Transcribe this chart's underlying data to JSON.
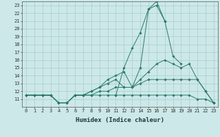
{
  "x": [
    0,
    1,
    2,
    3,
    4,
    5,
    6,
    7,
    8,
    9,
    10,
    11,
    12,
    13,
    14,
    15,
    16,
    17,
    18,
    19,
    20,
    21,
    22,
    23
  ],
  "line_peak": [
    null,
    null,
    null,
    null,
    null,
    null,
    null,
    null,
    null,
    null,
    null,
    11.5,
    15.0,
    17.5,
    19.5,
    22.5,
    23.5,
    21.0,
    null,
    null,
    null,
    null,
    null,
    null
  ],
  "line_main": [
    11.5,
    11.5,
    11.5,
    11.5,
    10.5,
    10.5,
    11.5,
    11.5,
    12.0,
    12.5,
    13.5,
    14.0,
    14.5,
    12.5,
    15.0,
    22.5,
    23.0,
    21.0,
    16.5,
    15.5,
    null,
    null,
    null,
    null
  ],
  "line_mid": [
    11.5,
    11.5,
    11.5,
    11.5,
    10.5,
    10.5,
    11.5,
    11.5,
    12.0,
    12.5,
    13.0,
    13.5,
    12.5,
    12.5,
    13.5,
    14.5,
    15.5,
    16.0,
    15.5,
    15.0,
    15.5,
    13.5,
    12.0,
    10.5
  ],
  "line_low": [
    11.5,
    11.5,
    11.5,
    11.5,
    10.5,
    10.5,
    11.5,
    11.5,
    11.5,
    12.0,
    12.0,
    12.5,
    12.5,
    12.5,
    13.0,
    13.5,
    13.5,
    13.5,
    13.5,
    13.5,
    13.5,
    13.5,
    12.0,
    10.5
  ],
  "line_flat": [
    11.5,
    11.5,
    11.5,
    11.5,
    10.5,
    10.5,
    11.5,
    11.5,
    11.5,
    11.5,
    11.5,
    11.5,
    11.5,
    11.5,
    11.5,
    11.5,
    11.5,
    11.5,
    11.5,
    11.5,
    11.5,
    11.0,
    11.0,
    10.5
  ],
  "line_color": "#2a7a6a",
  "bg_color": "#cce8e8",
  "grid_color": "#aacccc",
  "xlabel": "Humidex (Indice chaleur)",
  "ylim": [
    10,
    23.5
  ],
  "xlim": [
    -0.5,
    23.5
  ],
  "yticks": [
    11,
    12,
    13,
    14,
    15,
    16,
    17,
    18,
    19,
    20,
    21,
    22,
    23
  ],
  "xticks": [
    0,
    1,
    2,
    3,
    4,
    5,
    6,
    7,
    8,
    9,
    10,
    11,
    12,
    13,
    14,
    15,
    16,
    17,
    18,
    19,
    20,
    21,
    22,
    23
  ],
  "tick_fontsize": 5.0,
  "xlabel_fontsize": 6.5
}
